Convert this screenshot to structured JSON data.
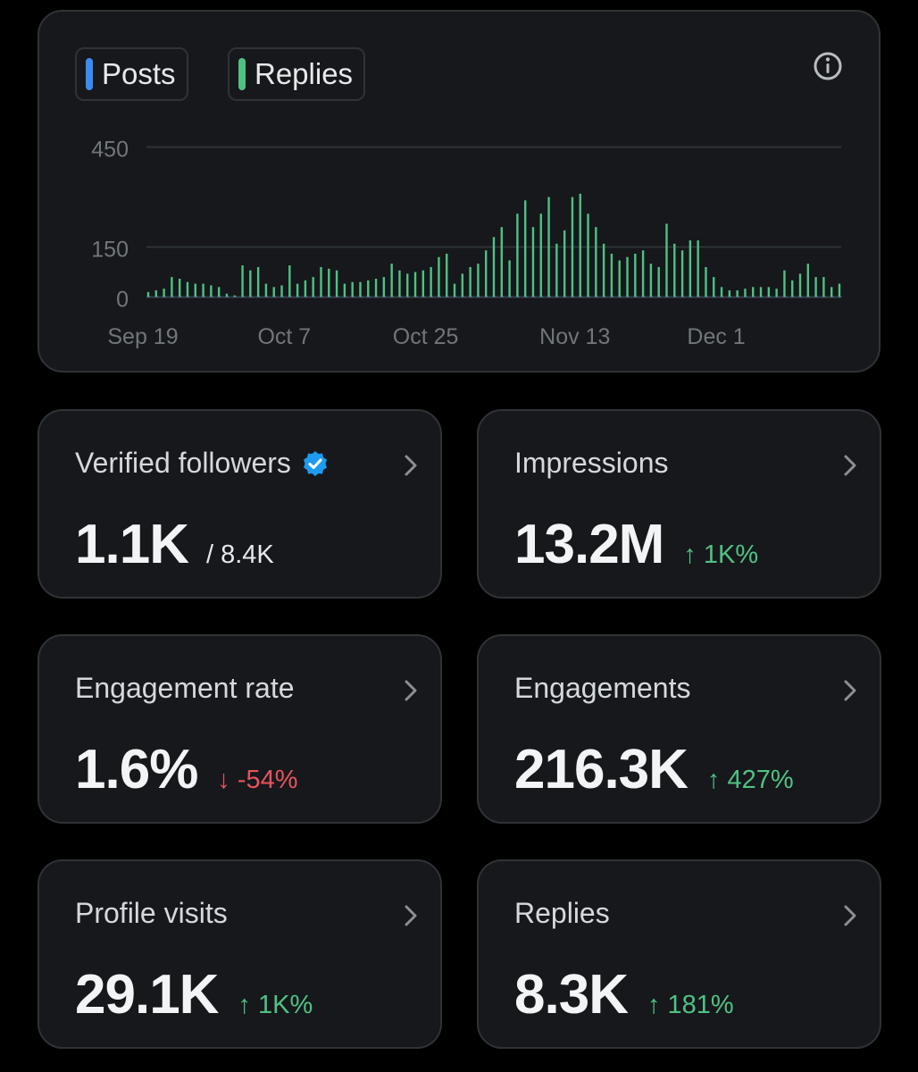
{
  "legend": {
    "posts_label": "Posts",
    "replies_label": "Replies",
    "posts_color": "#3b8cf0",
    "replies_color": "#4fc283"
  },
  "chart_data": {
    "type": "bar",
    "title": "",
    "xlabel": "",
    "ylabel": "",
    "y_ticks": [
      "450",
      "150",
      "0"
    ],
    "y_tick_values": [
      450,
      150,
      0
    ],
    "ylim": [
      0,
      450
    ],
    "x_tick_labels": [
      "Sep 19",
      "Oct 7",
      "Oct 25",
      "Nov 13",
      "Dec 1"
    ],
    "x_tick_indices": [
      0,
      18,
      36,
      55,
      73
    ],
    "gridlines": true,
    "legend_position": "top-left",
    "series": [
      {
        "name": "Posts",
        "color": "#3b8cf0",
        "values": [
          2,
          2,
          2,
          2,
          2,
          2,
          2,
          2,
          2,
          2,
          2,
          2,
          2,
          2,
          2,
          2,
          2,
          2,
          2,
          2,
          2,
          2,
          2,
          2,
          2,
          2,
          2,
          2,
          2,
          2,
          2,
          2,
          2,
          2,
          2,
          2,
          2,
          2,
          2,
          2,
          2,
          2,
          2,
          2,
          2,
          2,
          2,
          2,
          2,
          2,
          2,
          2,
          2,
          2,
          2,
          2,
          2,
          2,
          2,
          2,
          2,
          2,
          2,
          2,
          2,
          2,
          2,
          2,
          2,
          2,
          2,
          2,
          2,
          2,
          2,
          2,
          2,
          2,
          2,
          2,
          2,
          2,
          2,
          2,
          2,
          2,
          2,
          2,
          2
        ]
      },
      {
        "name": "Replies",
        "color": "#4fc283",
        "values": [
          15,
          20,
          25,
          60,
          55,
          45,
          40,
          40,
          35,
          30,
          10,
          5,
          95,
          80,
          90,
          40,
          30,
          35,
          95,
          40,
          50,
          60,
          90,
          85,
          80,
          40,
          45,
          45,
          50,
          55,
          60,
          100,
          80,
          70,
          75,
          80,
          90,
          120,
          130,
          40,
          70,
          90,
          100,
          140,
          180,
          210,
          110,
          250,
          290,
          210,
          250,
          300,
          160,
          200,
          300,
          310,
          250,
          210,
          160,
          130,
          110,
          120,
          130,
          140,
          100,
          90,
          220,
          160,
          140,
          170,
          170,
          90,
          60,
          30,
          20,
          20,
          25,
          30,
          30,
          30,
          25,
          80,
          50,
          70,
          100,
          60,
          60,
          30,
          40
        ]
      }
    ]
  },
  "stats": [
    {
      "label": "Verified followers",
      "value": "1.1K",
      "sub": "/ 8.4K",
      "delta": "",
      "direction": "none",
      "verified": true
    },
    {
      "label": "Impressions",
      "value": "13.2M",
      "sub": "",
      "delta": "↑ 1K%",
      "direction": "up",
      "verified": false
    },
    {
      "label": "Engagement rate",
      "value": "1.6%",
      "sub": "",
      "delta": "↓ -54%",
      "direction": "down",
      "verified": false
    },
    {
      "label": "Engagements",
      "value": "216.3K",
      "sub": "",
      "delta": "↑ 427%",
      "direction": "up",
      "verified": false
    },
    {
      "label": "Profile visits",
      "value": "29.1K",
      "sub": "",
      "delta": "↑ 1K%",
      "direction": "up",
      "verified": false
    },
    {
      "label": "Replies",
      "value": "8.3K",
      "sub": "",
      "delta": "↑ 181%",
      "direction": "up",
      "verified": false
    }
  ],
  "icons": {
    "info": "info-icon",
    "verified": "verified-badge-icon",
    "chevron": "chevron-right-icon"
  }
}
